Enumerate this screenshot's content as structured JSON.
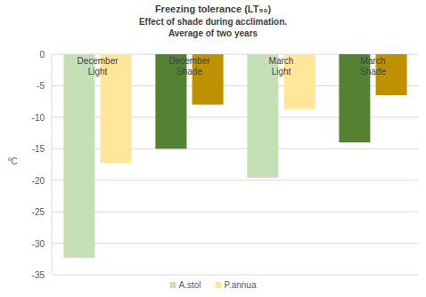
{
  "chart_data": {
    "type": "bar",
    "title": "Freezing tolerance (LT₅₀)",
    "subtitle": [
      "Effect of shade during acclimation.",
      "Average of two years"
    ],
    "y_label": "°C",
    "categories": [
      "December Light",
      "December Shade",
      "March Light",
      "March Shade"
    ],
    "series": [
      {
        "name": "A.stol",
        "color": "#c5e0b4",
        "colors": [
          "#c5e0b4",
          "#548235",
          "#c5e0b4",
          "#548235"
        ],
        "values": [
          -32.3,
          -15,
          -19.6,
          -14
        ]
      },
      {
        "name": "P.annua",
        "color": "#ffe699",
        "colors": [
          "#ffe699",
          "#bf9000",
          "#ffe699",
          "#bf9000"
        ],
        "values": [
          -17.3,
          -8,
          -8.7,
          -6.5
        ]
      }
    ],
    "ylim": [
      -35,
      0
    ],
    "yticks": [
      0,
      -5,
      -10,
      -15,
      -20,
      -25,
      -30,
      -35
    ],
    "grid": true,
    "legend": "bottom"
  }
}
